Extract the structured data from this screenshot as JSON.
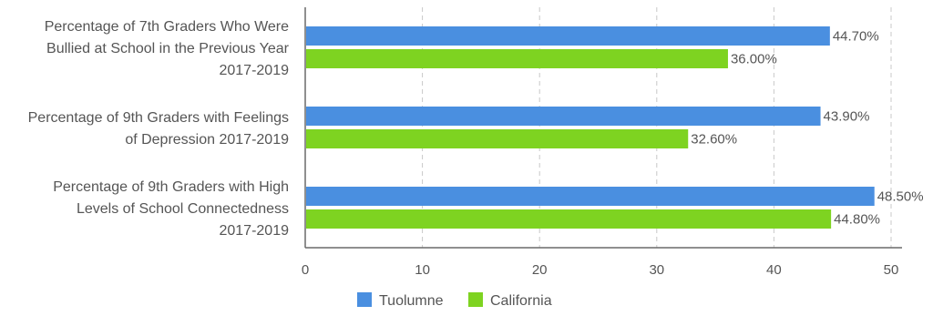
{
  "chart_data": {
    "type": "bar",
    "orientation": "horizontal",
    "categories": [
      [
        "Percentage of 7th Graders Who Were",
        "Bullied at School in the Previous Year",
        "2017-2019"
      ],
      [
        "Percentage of 9th Graders with Feelings",
        "of Depression 2017-2019"
      ],
      [
        "Percentage of 9th Graders with High",
        "Levels of School Connectedness",
        "2017-2019"
      ]
    ],
    "series": [
      {
        "name": "Tuolumne",
        "color": "#4a8fe0",
        "values": [
          44.7,
          43.9,
          48.5
        ],
        "labels": [
          "44.70%",
          "43.90%",
          "48.50%"
        ]
      },
      {
        "name": "California",
        "color": "#7ed321",
        "values": [
          36.0,
          32.6,
          44.8
        ],
        "labels": [
          "36.00%",
          "32.60%",
          "44.80%"
        ]
      }
    ],
    "xlim": [
      0,
      50
    ],
    "xticks": [
      0,
      10,
      20,
      30,
      40,
      50
    ],
    "grid": "dashed-vertical",
    "legend_position": "bottom"
  }
}
